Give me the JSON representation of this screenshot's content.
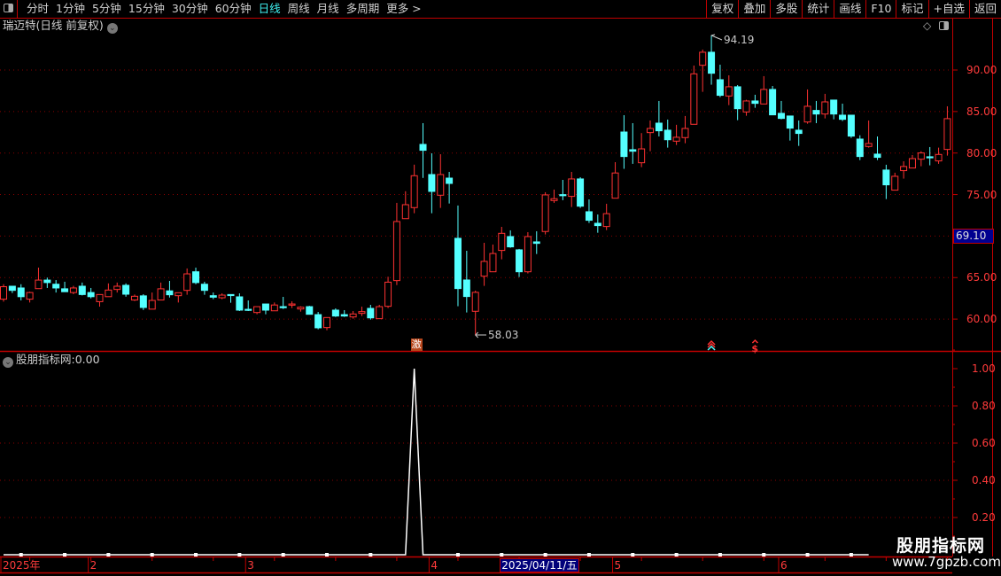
{
  "toolbar": {
    "periods": [
      "分时",
      "1分钟",
      "5分钟",
      "15分钟",
      "30分钟",
      "60分钟",
      "日线",
      "周线",
      "月线",
      "多周期",
      "更多 >"
    ],
    "active_period": "日线",
    "right_buttons": [
      "复权",
      "叠加",
      "多股",
      "统计",
      "画线",
      "F10",
      "标记",
      "+自选",
      "返回"
    ]
  },
  "chart": {
    "title": "瑞迈特(日线 前复权)",
    "colors": {
      "up": "#ff3232",
      "down": "#54ffff",
      "grid": "#8b0000",
      "axis": "#c00000",
      "axis_text": "#ff3b3b"
    },
    "price_ticks": [
      "90.00",
      "85.00",
      "80.00",
      "75.00",
      "65.00",
      "60.00"
    ],
    "price_tick_values": [
      90,
      85,
      80,
      75,
      65,
      60
    ],
    "current_price_label": "69.10",
    "high_annotation": "94.19",
    "low_annotation": "58.03",
    "candles_ohlc": [
      [
        62.4,
        64.2,
        62.1,
        63.9
      ],
      [
        63.96,
        63.96,
        63.14,
        63.46
      ],
      [
        63.75,
        64.2,
        62.25,
        62.7
      ],
      [
        62.4,
        63.3,
        62.0,
        63.2
      ],
      [
        63.67,
        66.2,
        63.67,
        64.7
      ],
      [
        64.7,
        65.0,
        63.75,
        64.4
      ],
      [
        64.2,
        64.7,
        63.2,
        63.75
      ],
      [
        63.65,
        64.5,
        63.3,
        63.3
      ],
      [
        63.2,
        64.0,
        63.0,
        63.75
      ],
      [
        63.96,
        64.4,
        62.85,
        62.96
      ],
      [
        63.2,
        63.75,
        62.5,
        62.7
      ],
      [
        62.1,
        62.96,
        61.5,
        62.96
      ],
      [
        62.7,
        64.3,
        62.7,
        63.5
      ],
      [
        63.57,
        64.4,
        63.2,
        63.96
      ],
      [
        64.07,
        64.3,
        62.7,
        63.0
      ],
      [
        62.3,
        62.96,
        62.18,
        62.75
      ],
      [
        62.8,
        63.0,
        61.1,
        61.4
      ],
      [
        61.2,
        63.2,
        61.2,
        62.25
      ],
      [
        62.3,
        64.4,
        62.3,
        63.65
      ],
      [
        63.4,
        64.6,
        62.6,
        62.93
      ],
      [
        62.82,
        63.18,
        62.0,
        63.18
      ],
      [
        63.46,
        66.1,
        62.93,
        65.45
      ],
      [
        65.7,
        66.2,
        64.2,
        64.4
      ],
      [
        64.2,
        64.5,
        62.93,
        63.46
      ],
      [
        62.82,
        63.2,
        62.4,
        62.64
      ],
      [
        62.57,
        63.1,
        62.4,
        62.89
      ],
      [
        62.96,
        63.0,
        61.97,
        62.89
      ],
      [
        62.68,
        63.1,
        60.97,
        61.08
      ],
      [
        61.18,
        62.25,
        60.97,
        61.08
      ],
      [
        60.79,
        61.5,
        60.58,
        61.5
      ],
      [
        61.82,
        61.82,
        60.58,
        61.08
      ],
      [
        61.0,
        62.0,
        61.0,
        61.7
      ],
      [
        61.5,
        62.68,
        61.22,
        61.43
      ],
      [
        61.68,
        62.14,
        61.33,
        61.82
      ],
      [
        61.22,
        61.54,
        60.9,
        61.43
      ],
      [
        61.5,
        61.6,
        60.58,
        60.58
      ],
      [
        60.54,
        60.86,
        58.77,
        58.95
      ],
      [
        58.98,
        60.19,
        58.66,
        60.19
      ],
      [
        61.08,
        61.29,
        60.26,
        60.37
      ],
      [
        60.54,
        61.08,
        60.26,
        60.37
      ],
      [
        60.26,
        60.97,
        60.05,
        60.62
      ],
      [
        60.69,
        61.5,
        60.37,
        60.9
      ],
      [
        61.29,
        61.72,
        59.94,
        60.15
      ],
      [
        60.05,
        61.72,
        60.05,
        61.5
      ],
      [
        61.54,
        65.1,
        61.33,
        64.45
      ],
      [
        64.64,
        74.0,
        64.1,
        71.75
      ],
      [
        72.1,
        75.4,
        72.1,
        73.78
      ],
      [
        73.43,
        78.6,
        72.75,
        77.27
      ],
      [
        81.04,
        83.6,
        77.0,
        80.33
      ],
      [
        77.41,
        79.97,
        72.75,
        75.38
      ],
      [
        74.92,
        79.86,
        73.39,
        77.41
      ],
      [
        76.98,
        77.73,
        73.92,
        76.34
      ],
      [
        69.73,
        73.68,
        61.55,
        63.68
      ],
      [
        64.71,
        68.23,
        60.8,
        62.72
      ],
      [
        60.94,
        63.43,
        58.03,
        63.22
      ],
      [
        65.17,
        69.19,
        64.0,
        66.95
      ],
      [
        65.7,
        68.98,
        65.7,
        67.9
      ],
      [
        68.27,
        71.11,
        67.2,
        70.33
      ],
      [
        69.94,
        70.69,
        68.59,
        68.7
      ],
      [
        68.34,
        68.45,
        65.07,
        65.7
      ],
      [
        65.7,
        70.47,
        65.5,
        69.94
      ],
      [
        69.3,
        70.58,
        67.84,
        69.12
      ],
      [
        70.55,
        75.28,
        70.19,
        74.96
      ],
      [
        74.28,
        75.6,
        74.0,
        74.5
      ],
      [
        74.99,
        76.77,
        74.32,
        74.88
      ],
      [
        74.78,
        77.73,
        73.5,
        76.88
      ],
      [
        76.88,
        77.09,
        73.39,
        73.6
      ],
      [
        72.93,
        74.42,
        71.58,
        71.9
      ],
      [
        71.54,
        72.6,
        70.4,
        71.26
      ],
      [
        71.15,
        73.89,
        70.72,
        72.7
      ],
      [
        74.56,
        78.9,
        74.56,
        77.6
      ],
      [
        82.53,
        84.56,
        78.1,
        79.58
      ],
      [
        80.4,
        83.6,
        78.7,
        80.22
      ],
      [
        78.83,
        82.4,
        78.3,
        80.5
      ],
      [
        82.46,
        83.92,
        80.22,
        82.96
      ],
      [
        83.6,
        86.27,
        82.0,
        82.68
      ],
      [
        82.75,
        84.03,
        80.65,
        81.6
      ],
      [
        81.43,
        83.4,
        80.97,
        81.9
      ],
      [
        81.86,
        84.46,
        81.18,
        82.96
      ],
      [
        83.46,
        90.54,
        83.46,
        89.54
      ],
      [
        90.57,
        92.46,
        87.37,
        92.14
      ],
      [
        92.14,
        94.19,
        88.23,
        89.61
      ],
      [
        88.83,
        90.64,
        86.73,
        86.95
      ],
      [
        86.87,
        89.36,
        85.77,
        87.98
      ],
      [
        87.98,
        88.19,
        83.96,
        85.34
      ],
      [
        84.95,
        86.41,
        84.49,
        86.27
      ],
      [
        86.27,
        87.02,
        85.45,
        85.98
      ],
      [
        85.91,
        89.26,
        85.91,
        87.66
      ],
      [
        87.66,
        88.08,
        84.6,
        84.6
      ],
      [
        84.78,
        86.27,
        84.06,
        84.17
      ],
      [
        84.46,
        84.46,
        81.5,
        83.0
      ],
      [
        82.75,
        83.92,
        80.86,
        82.36
      ],
      [
        83.74,
        87.66,
        83.53,
        85.63
      ],
      [
        85.13,
        86.27,
        83.6,
        84.7
      ],
      [
        84.7,
        87.13,
        84.17,
        86.16
      ],
      [
        86.38,
        86.38,
        84.06,
        84.7
      ],
      [
        84.56,
        85.95,
        83.85,
        84.06
      ],
      [
        84.56,
        84.56,
        81.82,
        82.04
      ],
      [
        81.68,
        82.14,
        79.15,
        79.58
      ],
      [
        80.79,
        83.92,
        80.65,
        81.15
      ],
      [
        79.87,
        82.0,
        79.15,
        79.48
      ],
      [
        77.95,
        78.59,
        74.46,
        76.17
      ],
      [
        75.53,
        77.63,
        75.53,
        77.2
      ],
      [
        77.88,
        79.01,
        76.92,
        78.38
      ],
      [
        78.2,
        79.76,
        78.2,
        79.33
      ],
      [
        79.26,
        80.22,
        78.41,
        80.01
      ],
      [
        79.55,
        80.72,
        78.52,
        79.48
      ],
      [
        79.05,
        80.65,
        78.7,
        79.83
      ],
      [
        80.43,
        85.63,
        79.69,
        84.14
      ]
    ],
    "signal_markers": [
      {
        "label": "激",
        "bar": 47
      },
      {
        "icon": "double-chevron-up-icon",
        "bar": 81
      },
      {
        "icon": "dollar-signal-icon",
        "bar": 86
      }
    ]
  },
  "indicator": {
    "name": "股朋指标网",
    "separator": ":",
    "value": "0.00",
    "ticks": [
      "1.00",
      "0.80",
      "0.60",
      "0.40",
      "0.20"
    ],
    "tick_values": [
      1.0,
      0.8,
      0.6,
      0.4,
      0.2
    ],
    "spike_bar": 47,
    "spike_value": 1.0,
    "last_bar": 99
  },
  "date_axis": {
    "labels": [
      {
        "text": "2025年",
        "bar": 0
      },
      {
        "text": "2",
        "bar": 10
      },
      {
        "text": "3",
        "bar": 28
      },
      {
        "text": "4",
        "bar": 49
      },
      {
        "text": "5",
        "bar": 70
      },
      {
        "text": "6",
        "bar": 89
      }
    ],
    "highlight": {
      "text": "2025/04/11/五",
      "bar": 57
    }
  },
  "watermark": {
    "name": "股朋指标网",
    "url": "www.7gpzb.com"
  }
}
